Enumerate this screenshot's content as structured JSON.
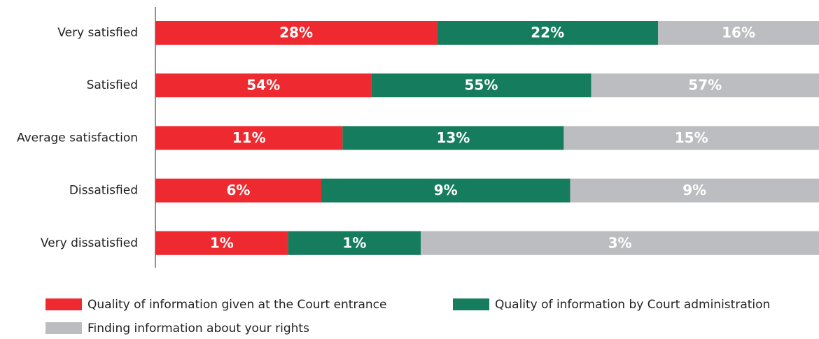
{
  "chart_data": {
    "type": "bar",
    "orientation": "horizontal",
    "stacked": true,
    "normalized": true,
    "categories": [
      "Very satisfied",
      "Satisfied",
      "Average satisfaction",
      "Dissatisfied",
      "Very dissatisfied"
    ],
    "series": [
      {
        "name": "Quality of information given at the Court entrance",
        "color": "#ee2a30",
        "values": [
          28,
          54,
          11,
          6,
          1
        ],
        "value_labels": [
          "28%",
          "54%",
          "11%",
          "6%",
          "1%"
        ]
      },
      {
        "name": "Quality of information by Court administration",
        "color": "#167c5e",
        "values": [
          22,
          55,
          13,
          9,
          1
        ],
        "value_labels": [
          "22%",
          "55%",
          "13%",
          "9%",
          "1%"
        ]
      },
      {
        "name": "Finding information about your rights",
        "color": "#bcbdc0",
        "values": [
          16,
          57,
          15,
          9,
          3
        ],
        "value_labels": [
          "16%",
          "57%",
          "15%",
          "9%",
          "3%"
        ]
      }
    ],
    "legend": "bottom"
  }
}
